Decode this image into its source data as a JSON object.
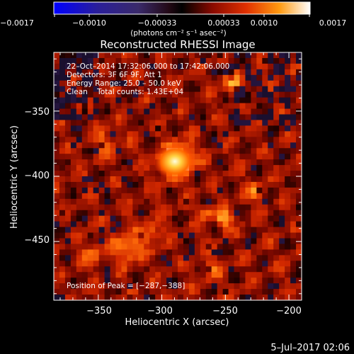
{
  "colorbar": {
    "tick_labels": [
      "−0.0017",
      "−0.0010",
      "−0.00033",
      "0.00033",
      "0.0010",
      "0.0017"
    ],
    "unit_label": "(photons cm⁻² s⁻¹ asec⁻²)",
    "range": [
      -0.0017,
      0.0017
    ]
  },
  "title": "Reconstructed RHESSI Image",
  "info": {
    "line1": "22–Oct–2014 17:32:06.000 to 17:42:06.000",
    "line2": "Detectors: 3F 6F 9F, Att 1",
    "line3": "Energy Range: 25.0 – 50.0 keV",
    "line4": "Clean    Total counts: 1.43E+04"
  },
  "peak_label": "Position of Peak = [−287,−388]",
  "axes": {
    "xlabel": "Heliocentric X (arcsec)",
    "ylabel": "Heliocentric Y (arcsec)",
    "xlim": [
      -385,
      -190
    ],
    "ylim": [
      -495,
      -305
    ],
    "xticks": [
      -350,
      -300,
      -250,
      -200
    ],
    "yticks": [
      -350,
      -400,
      -450
    ],
    "xtick_labels": [
      "−350",
      "−300",
      "−250",
      "−200"
    ],
    "ytick_labels": [
      "−350",
      "−400",
      "−450"
    ]
  },
  "peak_position": [
    -287,
    -388
  ],
  "footer_date": "5–Jul–2017 02:06"
}
